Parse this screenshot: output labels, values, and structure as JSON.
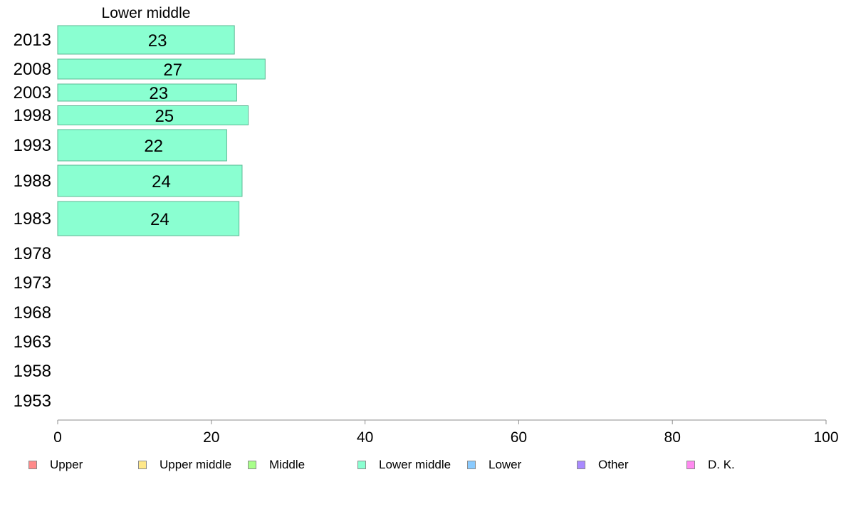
{
  "chart_data": {
    "type": "bar",
    "orientation": "horizontal",
    "title": "Lower middle",
    "xlabel": "",
    "ylabel": "",
    "xlim": [
      0,
      100
    ],
    "x_ticks": [
      0,
      20,
      40,
      60,
      80,
      100
    ],
    "grid": false,
    "categories": [
      "2013",
      "2008",
      "2003",
      "1998",
      "1993",
      "1988",
      "1983",
      "1978",
      "1973",
      "1968",
      "1963",
      "1958",
      "1953"
    ],
    "values": [
      23,
      27,
      23.3,
      24.8,
      22,
      24,
      23.6,
      null,
      null,
      null,
      null,
      null,
      null
    ],
    "data_labels": [
      "23",
      "27",
      "23",
      "25",
      "22",
      "24",
      "24",
      "",
      "",
      "",
      "",
      "",
      ""
    ],
    "bar_color": "#8affd1",
    "bar_edge_color": "#5cb894",
    "legend_position": "bottom",
    "legend": [
      {
        "name": "Upper",
        "color": "#ff8a8a"
      },
      {
        "name": "Upper middle",
        "color": "#ffe88a"
      },
      {
        "name": "Middle",
        "color": "#a8ff8a"
      },
      {
        "name": "Lower middle",
        "color": "#8affd1"
      },
      {
        "name": "Lower",
        "color": "#8acbff"
      },
      {
        "name": "Other",
        "color": "#a98aff"
      },
      {
        "name": "D. K.",
        "color": "#ff8af0"
      }
    ]
  }
}
